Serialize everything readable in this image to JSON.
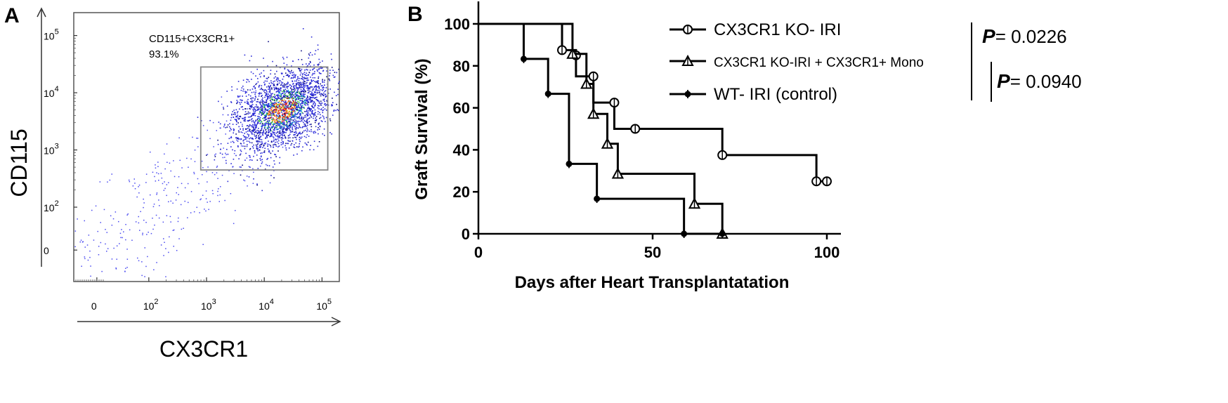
{
  "panel_a": {
    "letter": "A",
    "gate_name": "CD115+CX3CR1+",
    "gate_percent": "93.1%",
    "y_ticks": [
      {
        "base": "10",
        "exp": "5",
        "v": 5
      },
      {
        "base": "10",
        "exp": "4",
        "v": 4
      },
      {
        "base": "10",
        "exp": "3",
        "v": 3
      },
      {
        "base": "10",
        "exp": "2",
        "v": 2
      },
      {
        "base": "0",
        "exp": "",
        "v": 1.25
      }
    ],
    "x_ticks": [
      {
        "base": "0",
        "exp": "",
        "v": 1.1
      },
      {
        "base": "10",
        "exp": "2",
        "v": 2
      },
      {
        "base": "10",
        "exp": "3",
        "v": 3
      },
      {
        "base": "10",
        "exp": "4",
        "v": 4
      },
      {
        "base": "10",
        "exp": "5",
        "v": 5
      }
    ]
  },
  "panel_b": {
    "letter": "B",
    "legend": [
      {
        "label": "CX3CR1 KO- IRI",
        "marker": "circle"
      },
      {
        "label": "CX3CR1 KO-IRI + CX3CR1+ Mono",
        "marker": "triangle"
      },
      {
        "label": "WT- IRI (control)",
        "marker": "dot"
      }
    ],
    "p_values": [
      {
        "symbol": "P",
        "text": "= 0.0226"
      },
      {
        "symbol": "P",
        "text": "= 0.0940"
      }
    ]
  },
  "chart_data": [
    {
      "type": "scatter",
      "title": "",
      "xlabel": "CX3CR1",
      "ylabel": "CD115",
      "x_scale": "log (biexponential display)",
      "y_scale": "log (biexponential display)",
      "xlim": [
        0.7,
        5.3
      ],
      "ylim": [
        0.7,
        5.4
      ],
      "gate": {
        "name": "CD115+CX3CR1+",
        "percent": 93.1,
        "x_range_log10": [
          2.9,
          5.1
        ],
        "y_range_log10": [
          2.65,
          4.45
        ]
      },
      "density_center_log10": {
        "x": 4.3,
        "y": 3.7
      },
      "note": "dot plot with density coloring (blue low, green/yellow medium, red high)"
    },
    {
      "type": "line",
      "subtype": "kaplan-meier",
      "title": "",
      "xlabel": "Days after Heart Transplantatation",
      "ylabel": "Graft Survival (%)",
      "xlim": [
        0,
        100
      ],
      "ylim": [
        0,
        100
      ],
      "x_ticks": [
        0,
        50,
        100
      ],
      "y_ticks": [
        0,
        20,
        40,
        60,
        80,
        100
      ],
      "series": [
        {
          "name": "CX3CR1 KO- IRI",
          "marker": "open-circle",
          "steps": [
            [
              0,
              100
            ],
            [
              24,
              87.5
            ],
            [
              28,
              75
            ],
            [
              33,
              62.5
            ],
            [
              39,
              50
            ],
            [
              45,
              50
            ],
            [
              70,
              37.5
            ],
            [
              97,
              25
            ],
            [
              100,
              25
            ]
          ],
          "markers": [
            [
              24,
              87.5
            ],
            [
              28,
              85
            ],
            [
              33,
              75
            ],
            [
              39,
              62.5
            ],
            [
              45,
              50
            ],
            [
              70,
              37.5
            ],
            [
              97,
              25
            ],
            [
              100,
              25
            ]
          ]
        },
        {
          "name": "CX3CR1 KO-IRI + CX3CR1+ Mono",
          "marker": "open-triangle",
          "steps": [
            [
              0,
              100
            ],
            [
              27,
              85.7
            ],
            [
              31,
              71.4
            ],
            [
              33,
              57.1
            ],
            [
              37,
              42.9
            ],
            [
              40,
              28.6
            ],
            [
              62,
              14.3
            ],
            [
              70,
              0
            ]
          ],
          "markers": [
            [
              27,
              85.7
            ],
            [
              31,
              71.4
            ],
            [
              33,
              57.1
            ],
            [
              37,
              42.9
            ],
            [
              40,
              28.6
            ],
            [
              62,
              14.3
            ],
            [
              70,
              0
            ]
          ]
        },
        {
          "name": "WT- IRI (control)",
          "marker": "filled-dot",
          "steps": [
            [
              0,
              100
            ],
            [
              13,
              83.3
            ],
            [
              20,
              66.7
            ],
            [
              26,
              33.3
            ],
            [
              34,
              16.7
            ],
            [
              59,
              0
            ],
            [
              70,
              0
            ]
          ],
          "markers": [
            [
              13,
              83.3
            ],
            [
              20,
              66.7
            ],
            [
              26,
              33.3
            ],
            [
              34,
              16.7
            ],
            [
              59,
              0
            ],
            [
              70,
              0
            ]
          ]
        }
      ],
      "legend_position": "top-right",
      "statistics": [
        {
          "comparison": "CX3CR1 KO- IRI vs WT- IRI (control)",
          "p": 0.0226
        },
        {
          "comparison": "CX3CR1 KO-IRI + CX3CR1+ Mono vs WT- IRI (control)",
          "p": 0.094
        }
      ]
    }
  ]
}
